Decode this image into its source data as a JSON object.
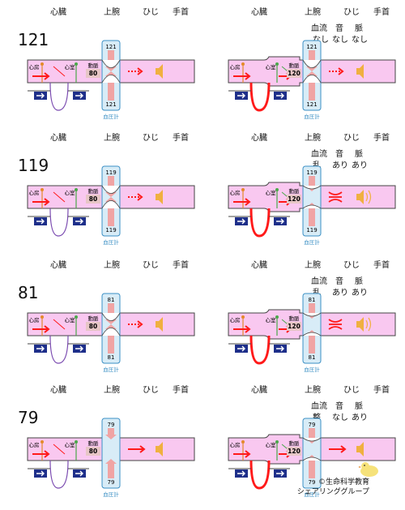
{
  "labels": {
    "heart": "心臓",
    "upper_arm": "上腕",
    "elbow": "ひじ",
    "wrist": "手首",
    "atrium": "心房",
    "ventricle": "心室",
    "artery": "動脈",
    "cuff": "血圧計",
    "blood_flow": "血流",
    "sound": "音",
    "pulse": "脈"
  },
  "rows": [
    {
      "pressure": "121",
      "left": {
        "artery_reading": "80",
        "cuff_top": "121",
        "cuff_bottom": "121"
      },
      "right": {
        "artery_reading": "120",
        "cuff_top": "121",
        "cuff_bottom": "121",
        "flow": "なし",
        "sound": "なし",
        "pulse": "なし"
      }
    },
    {
      "pressure": "119",
      "left": {
        "artery_reading": "80",
        "cuff_top": "119",
        "cuff_bottom": "119"
      },
      "right": {
        "artery_reading": "120",
        "cuff_top": "119",
        "cuff_bottom": "119",
        "flow": "乱",
        "sound": "あり",
        "pulse": "あり"
      }
    },
    {
      "pressure": "81",
      "left": {
        "artery_reading": "80",
        "cuff_top": "81",
        "cuff_bottom": "81"
      },
      "right": {
        "artery_reading": "120",
        "cuff_top": "81",
        "cuff_bottom": "81",
        "flow": "乱",
        "sound": "あり",
        "pulse": "あり"
      }
    },
    {
      "pressure": "79",
      "left": {
        "artery_reading": "80",
        "cuff_top": "79",
        "cuff_bottom": "79"
      },
      "right": {
        "artery_reading": "120",
        "cuff_top": "79",
        "cuff_bottom": "79",
        "flow": "整",
        "sound": "なし",
        "pulse": "あり"
      }
    }
  ],
  "credit": {
    "line1": "©生命科学教育",
    "line2": "シェアリンググループ"
  },
  "colors": {
    "vessel_fill": "#f9c8f0",
    "vessel_stroke": "#444444",
    "cuff_fill": "#d8ecf7",
    "cuff_stroke": "#3a8fc4",
    "arrow_red": "#ff1a1a",
    "pressure_arrow": "#f0a4a4",
    "speaker": "#f0b040",
    "heart_purple": "#7a4ab0",
    "valve_blue": "#1e2f8a",
    "vein_green": "#4aa84a",
    "atrium_orange": "#e48a2a"
  }
}
